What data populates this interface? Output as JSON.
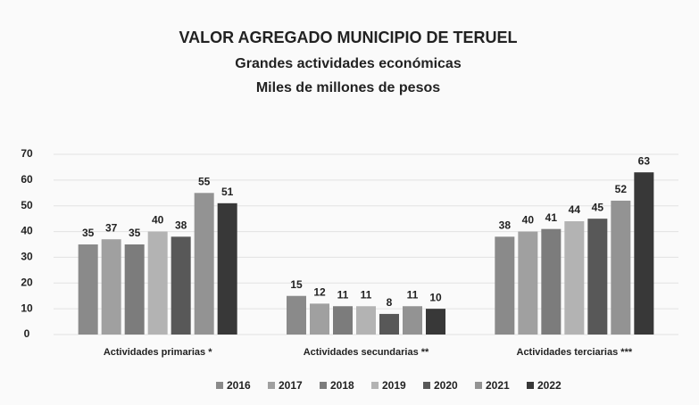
{
  "chart_data": {
    "type": "bar",
    "title": "VALOR AGREGADO MUNICIPIO DE TERUEL",
    "subtitle": [
      "Grandes actividades económicas",
      "Miles de millones de pesos"
    ],
    "categories": [
      "Actividades primarias *",
      "Actividades secundarias **",
      "Actividades terciarias ***"
    ],
    "series": [
      {
        "name": "2016",
        "color": "#8a8a8a",
        "values": [
          35,
          15,
          38
        ]
      },
      {
        "name": "2017",
        "color": "#a0a0a0",
        "values": [
          37,
          12,
          40
        ]
      },
      {
        "name": "2018",
        "color": "#7c7c7c",
        "values": [
          35,
          11,
          41
        ]
      },
      {
        "name": "2019",
        "color": "#b3b3b3",
        "values": [
          40,
          11,
          44
        ]
      },
      {
        "name": "2020",
        "color": "#585858",
        "values": [
          38,
          8,
          45
        ]
      },
      {
        "name": "2021",
        "color": "#939393",
        "values": [
          55,
          11,
          52
        ]
      },
      {
        "name": "2022",
        "color": "#383838",
        "values": [
          51,
          10,
          63
        ]
      }
    ],
    "ylim": [
      0,
      70
    ],
    "yticks": [
      0,
      10,
      20,
      30,
      40,
      50,
      60,
      70
    ],
    "grid": true
  }
}
